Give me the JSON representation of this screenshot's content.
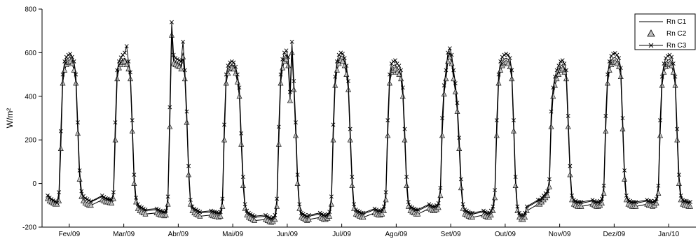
{
  "chart_data": {
    "type": "line",
    "title": "",
    "xlabel": "",
    "ylabel": "W/m²",
    "ylim": [
      -200,
      800
    ],
    "yticks": [
      -200,
      0,
      200,
      400,
      600,
      800
    ],
    "xticks": [
      "Fev/09",
      "Mar/09",
      "Abr/09",
      "Mai/09",
      "Jun/09",
      "Jul/09",
      "Ago/09",
      "Set/09",
      "Out/09",
      "Nov/09",
      "Dez/09",
      "Jan/10"
    ],
    "grid": false,
    "legend_position": "top-right",
    "legend": [
      "Rn C1",
      "Rn C2",
      "Rn C3"
    ],
    "day_profile_hours": [
      0,
      1,
      2,
      3,
      4,
      5,
      6,
      7,
      8,
      9,
      10,
      11,
      12,
      13,
      14,
      15,
      16,
      17,
      18,
      19,
      20,
      21,
      22,
      23
    ],
    "series": [
      {
        "name": "Rn C1",
        "marker": "none",
        "color": "#000000",
        "daily_profiles": {
          "Fev/09": [
            -50,
            -60,
            -70,
            -75,
            -80,
            -85,
            -60,
            200,
            480,
            540,
            565,
            575,
            580,
            570,
            540,
            480,
            250,
            40,
            -40,
            -60,
            -70,
            -75,
            -80,
            -85
          ],
          "Mar/09": [
            -60,
            -65,
            -70,
            -72,
            -75,
            -78,
            -55,
            240,
            500,
            545,
            560,
            570,
            575,
            560,
            540,
            500,
            260,
            20,
            -70,
            -100,
            -110,
            -115,
            -120,
            -125
          ],
          "Abr/09": [
            -120,
            -125,
            -130,
            -132,
            -135,
            -130,
            -80,
            300,
            720,
            570,
            560,
            555,
            550,
            540,
            600,
            500,
            300,
            60,
            -80,
            -110,
            -120,
            -125,
            -130,
            -135
          ],
          "Mai/09": [
            -130,
            -132,
            -135,
            -138,
            -140,
            -135,
            -90,
            240,
            480,
            520,
            540,
            545,
            540,
            520,
            480,
            420,
            200,
            10,
            -100,
            -130,
            -140,
            -145,
            -150,
            -155
          ],
          "Jun/09": [
            -150,
            -155,
            -160,
            -165,
            -160,
            -150,
            -90,
            220,
            480,
            550,
            580,
            590,
            560,
            400,
            620,
            450,
            240,
            20,
            -100,
            -140,
            -145,
            -150,
            -155,
            -150
          ],
          "Jul/09": [
            -140,
            -145,
            -150,
            -150,
            -145,
            -135,
            -80,
            240,
            470,
            540,
            570,
            585,
            580,
            560,
            520,
            450,
            220,
            10,
            -100,
            -125,
            -130,
            -135,
            -140,
            -140
          ],
          "Ago/09": [
            -120,
            -125,
            -130,
            -130,
            -125,
            -110,
            -60,
            260,
            480,
            530,
            540,
            545,
            530,
            520,
            500,
            420,
            220,
            10,
            -90,
            -110,
            -115,
            -120,
            -125,
            -125
          ],
          "Set/09": [
            -100,
            -105,
            -110,
            -110,
            -105,
            -95,
            -40,
            260,
            430,
            500,
            580,
            600,
            570,
            500,
            440,
            350,
            180,
            0,
            -100,
            -125,
            -130,
            -135,
            -140,
            -140
          ],
          "Out/09": [
            -130,
            -135,
            -140,
            -140,
            -130,
            -110,
            -50,
            260,
            480,
            540,
            560,
            570,
            575,
            570,
            555,
            500,
            260,
            10,
            -110,
            -140,
            -150,
            -150,
            -140,
            -110
          ],
          "Nov/09": [
            -80,
            -80,
            -70,
            -60,
            -50,
            -40,
            0,
            300,
            420,
            470,
            500,
            520,
            540,
            545,
            530,
            500,
            280,
            60,
            -60,
            -80,
            -85,
            -90,
            -90,
            -90
          ],
          "Dez/09": [
            -80,
            -85,
            -90,
            -90,
            -85,
            -75,
            -30,
            280,
            480,
            540,
            565,
            575,
            578,
            570,
            555,
            510,
            270,
            40,
            -60,
            -80,
            -85,
            -90,
            -90,
            -90
          ],
          "Jan/10": [
            -80,
            -85,
            -85,
            -90,
            -85,
            -75,
            -30,
            260,
            470,
            530,
            555,
            565,
            570,
            560,
            530,
            470,
            220,
            20,
            -60,
            -80,
            -85,
            -85,
            -90,
            -90
          ]
        }
      },
      {
        "name": "Rn C2",
        "marker": "triangle",
        "color": "#bfbfbf",
        "daily_profiles": {
          "Fev/09": [
            -70,
            -80,
            -85,
            -90,
            -95,
            -95,
            -80,
            160,
            460,
            520,
            545,
            555,
            560,
            550,
            520,
            460,
            230,
            20,
            -60,
            -80,
            -90,
            -95,
            -100,
            -100
          ],
          "Mar/09": [
            -75,
            -80,
            -85,
            -85,
            -88,
            -90,
            -70,
            200,
            480,
            530,
            545,
            555,
            560,
            545,
            525,
            480,
            240,
            0,
            -85,
            -115,
            -125,
            -130,
            -135,
            -140
          ],
          "Abr/09": [
            -135,
            -140,
            -145,
            -145,
            -148,
            -145,
            -95,
            260,
            680,
            550,
            545,
            540,
            535,
            525,
            580,
            480,
            280,
            40,
            -95,
            -125,
            -135,
            -140,
            -145,
            -150
          ],
          "Mai/09": [
            -145,
            -148,
            -150,
            -152,
            -155,
            -150,
            -105,
            200,
            460,
            505,
            525,
            530,
            525,
            505,
            465,
            400,
            180,
            -10,
            -115,
            -145,
            -155,
            -160,
            -165,
            -170
          ],
          "Jun/09": [
            -165,
            -170,
            -175,
            -178,
            -175,
            -165,
            -105,
            180,
            460,
            530,
            560,
            570,
            540,
            380,
            600,
            430,
            220,
            0,
            -115,
            -155,
            -160,
            -165,
            -170,
            -165
          ],
          "Jul/09": [
            -155,
            -160,
            -165,
            -165,
            -160,
            -150,
            -95,
            200,
            450,
            520,
            550,
            565,
            560,
            540,
            500,
            430,
            200,
            -10,
            -115,
            -140,
            -145,
            -150,
            -155,
            -155
          ],
          "Ago/09": [
            -135,
            -140,
            -145,
            -145,
            -140,
            -125,
            -75,
            220,
            460,
            510,
            520,
            525,
            510,
            500,
            480,
            400,
            200,
            -10,
            -105,
            -125,
            -130,
            -135,
            -140,
            -140
          ],
          "Set/09": [
            -115,
            -120,
            -125,
            -125,
            -120,
            -110,
            -55,
            220,
            410,
            480,
            560,
            580,
            550,
            480,
            420,
            330,
            160,
            -20,
            -115,
            -140,
            -145,
            -150,
            -155,
            -155
          ],
          "Out/09": [
            -145,
            -150,
            -155,
            -155,
            -145,
            -125,
            -65,
            220,
            460,
            520,
            540,
            550,
            555,
            550,
            535,
            480,
            240,
            -10,
            -125,
            -155,
            -165,
            -165,
            -155,
            -125
          ],
          "Nov/09": [
            -95,
            -95,
            -85,
            -75,
            -65,
            -55,
            -15,
            260,
            400,
            450,
            480,
            500,
            520,
            525,
            510,
            480,
            260,
            40,
            -75,
            -95,
            -100,
            -105,
            -105,
            -105
          ],
          "Dez/09": [
            -95,
            -100,
            -105,
            -105,
            -100,
            -90,
            -45,
            240,
            460,
            520,
            545,
            555,
            558,
            550,
            535,
            490,
            250,
            20,
            -75,
            -95,
            -100,
            -105,
            -105,
            -105
          ],
          "Jan/10": [
            -95,
            -100,
            -100,
            -105,
            -100,
            -90,
            -45,
            220,
            450,
            510,
            535,
            545,
            550,
            540,
            510,
            450,
            200,
            0,
            -75,
            -95,
            -100,
            -100,
            -105,
            -105
          ]
        }
      },
      {
        "name": "Rn C3",
        "marker": "x",
        "color": "#000000",
        "daily_profiles": {
          "Fev/09": [
            -55,
            -65,
            -72,
            -78,
            -82,
            -88,
            -40,
            240,
            500,
            560,
            580,
            590,
            595,
            580,
            560,
            500,
            280,
            60,
            -35,
            -58,
            -68,
            -72,
            -78,
            -82
          ],
          "Mar/09": [
            -55,
            -62,
            -68,
            -70,
            -72,
            -75,
            -40,
            280,
            520,
            560,
            578,
            590,
            600,
            630,
            560,
            510,
            290,
            40,
            -65,
            -95,
            -105,
            -110,
            -115,
            -120
          ],
          "Abr/09": [
            -115,
            -120,
            -125,
            -128,
            -130,
            -125,
            -60,
            350,
            740,
            590,
            575,
            570,
            565,
            560,
            650,
            520,
            330,
            80,
            -75,
            -105,
            -115,
            -120,
            -125,
            -130
          ],
          "Mai/09": [
            -125,
            -128,
            -130,
            -132,
            -135,
            -130,
            -70,
            270,
            500,
            540,
            555,
            560,
            555,
            535,
            500,
            440,
            230,
            30,
            -95,
            -125,
            -135,
            -140,
            -145,
            -150
          ],
          "Jun/09": [
            -145,
            -150,
            -155,
            -160,
            -155,
            -145,
            -70,
            260,
            500,
            570,
            600,
            610,
            580,
            420,
            650,
            470,
            280,
            40,
            -95,
            -135,
            -140,
            -145,
            -150,
            -145
          ],
          "Jul/09": [
            -135,
            -140,
            -145,
            -145,
            -140,
            -130,
            -60,
            270,
            490,
            560,
            590,
            600,
            595,
            575,
            540,
            470,
            250,
            30,
            -95,
            -120,
            -125,
            -130,
            -135,
            -135
          ],
          "Ago/09": [
            -115,
            -120,
            -125,
            -125,
            -120,
            -105,
            -40,
            290,
            500,
            550,
            560,
            565,
            550,
            540,
            520,
            440,
            250,
            30,
            -85,
            -105,
            -110,
            -115,
            -120,
            -120
          ],
          "Set/09": [
            -95,
            -100,
            -105,
            -105,
            -100,
            -90,
            -20,
            300,
            450,
            520,
            600,
            620,
            590,
            520,
            460,
            370,
            210,
            20,
            -95,
            -120,
            -125,
            -130,
            -135,
            -135
          ],
          "Out/09": [
            -125,
            -130,
            -135,
            -135,
            -125,
            -105,
            -30,
            290,
            500,
            560,
            580,
            590,
            595,
            590,
            575,
            520,
            290,
            30,
            -105,
            -135,
            -145,
            -145,
            -135,
            -105
          ],
          "Nov/09": [
            -75,
            -75,
            -65,
            -55,
            -45,
            -35,
            20,
            330,
            440,
            490,
            520,
            540,
            560,
            565,
            550,
            520,
            310,
            80,
            -55,
            -75,
            -80,
            -85,
            -85,
            -85
          ],
          "Dez/09": [
            -75,
            -80,
            -85,
            -85,
            -80,
            -70,
            -10,
            310,
            500,
            560,
            585,
            595,
            598,
            590,
            575,
            530,
            300,
            60,
            -55,
            -75,
            -80,
            -85,
            -85,
            -85
          ],
          "Jan/10": [
            -75,
            -80,
            -80,
            -85,
            -80,
            -70,
            -10,
            290,
            490,
            550,
            575,
            585,
            590,
            580,
            550,
            490,
            250,
            40,
            -55,
            -75,
            -80,
            -80,
            -85,
            -85
          ]
        }
      }
    ]
  }
}
